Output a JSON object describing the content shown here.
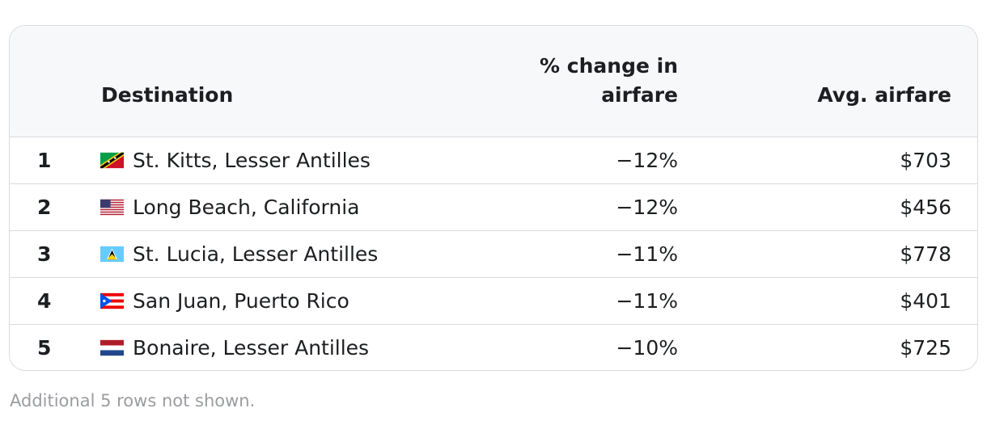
{
  "table": {
    "header": [
      "Destination",
      "% change in airfare",
      "Avg. airfare"
    ],
    "rows": [
      [
        "1",
        "St. Kitts, Lesser Antilles",
        "−12%",
        "$703"
      ],
      [
        "2",
        "Long Beach, California",
        "−12%",
        "$456"
      ],
      [
        "3",
        "St. Lucia, Lesser Antilles",
        "−11%",
        "$778"
      ],
      [
        "4",
        "San Juan, Puerto Rico",
        "−11%",
        "$401"
      ],
      [
        "5",
        "Bonaire, Lesser Antilles",
        "−10%",
        "$725"
      ]
    ]
  },
  "footnote": "Additional 5 rows not shown."
}
